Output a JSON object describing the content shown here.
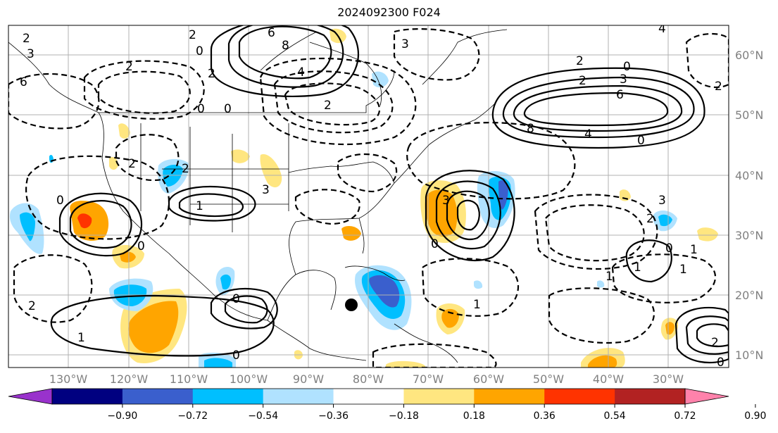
{
  "title": "2024092300 F024",
  "lat_labels": [
    "60°N",
    "50°N",
    "40°N",
    "30°N",
    "20°N",
    "10°N"
  ],
  "lon_labels": [
    "130°W",
    "120°W",
    "110°W",
    "100°W",
    "90°W",
    "80°W",
    "70°W",
    "60°W",
    "50°W",
    "40°W",
    "30°W"
  ],
  "colorbar": {
    "colors": [
      "#9932cc",
      "#000080",
      "#3a5fcd",
      "#00bfff",
      "#b0e2ff",
      "#ffffff",
      "#ffe680",
      "#ffa500",
      "#ff3300",
      "#b22222",
      "#ff82ab"
    ],
    "tick_labels": [
      "−0.90",
      "−0.72",
      "−0.54",
      "−0.36",
      "−0.18",
      "0.18",
      "0.36",
      "0.54",
      "0.72",
      "0.90"
    ]
  },
  "contour_labels": [
    "2",
    "3",
    "6",
    "2",
    "0",
    "2",
    "6",
    "8",
    "4",
    "2",
    "0",
    "2",
    "0",
    "3",
    "2",
    "0",
    "2",
    "8",
    "4",
    "6",
    "3",
    "4",
    "0",
    "2",
    "2",
    "0",
    "3",
    "2",
    "1",
    "0",
    "3",
    "0",
    "1",
    "0",
    "1",
    "0",
    "3",
    "2",
    "1",
    "1",
    "2",
    "0",
    "0",
    "1",
    "1",
    "2"
  ],
  "marker": "hurricane-position-dot"
}
